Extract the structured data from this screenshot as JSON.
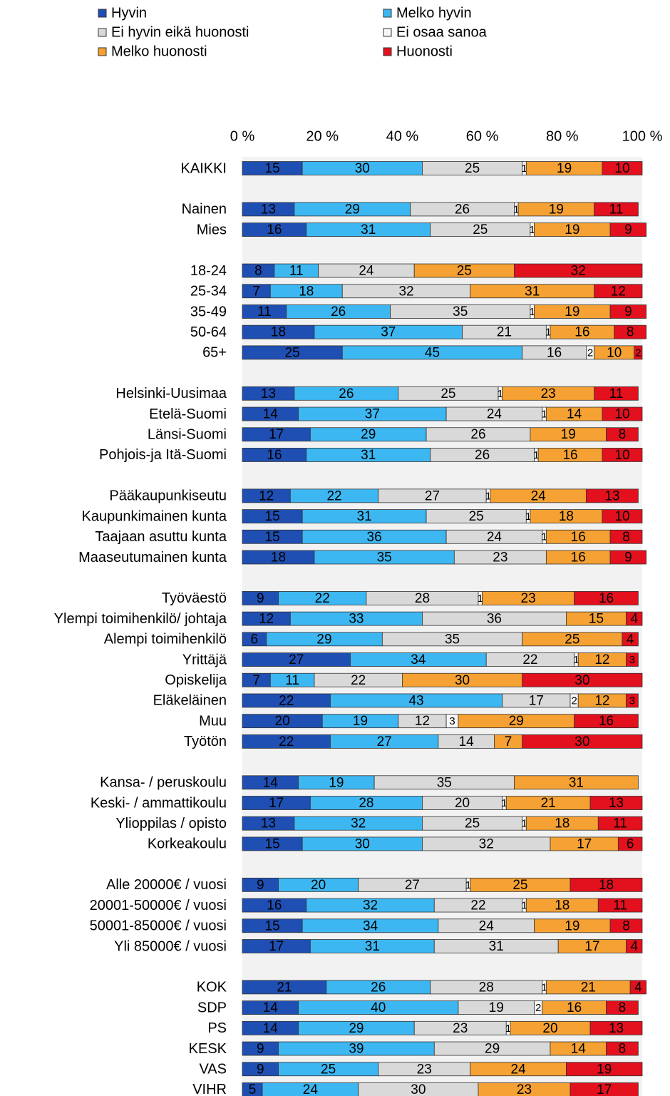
{
  "chart_data": {
    "type": "stacked_bar_horizontal",
    "categories": [
      "KAIKKI",
      null,
      "Nainen",
      "Mies",
      null,
      "18-24",
      "25-34",
      "35-49",
      "50-64",
      "65+",
      null,
      "Helsinki-Uusimaa",
      "Etelä-Suomi",
      "Länsi-Suomi",
      "Pohjois-ja Itä-Suomi",
      null,
      "Pääkaupunkiseutu",
      "Kaupunkimainen kunta",
      "Taajaan asuttu kunta",
      "Maaseutumainen kunta",
      null,
      "Työväestö",
      "Ylempi toimihenkilö/ johtaja",
      "Alempi toimihenkilö",
      "Yrittäjä",
      "Opiskelija",
      "Eläkeläinen",
      "Muu",
      "Työtön",
      null,
      "Kansa- / peruskoulu",
      "Keski- / ammattikoulu",
      "Ylioppilas / opisto",
      "Korkeakoulu",
      null,
      "Alle 20000€ / vuosi",
      "20001-50000€ / vuosi",
      "50001-85000€ / vuosi",
      "Yli 85000€ / vuosi",
      null,
      "KOK",
      "SDP",
      "PS",
      "KESK",
      "VAS",
      "VIHR"
    ],
    "series": [
      {
        "name": "Hyvin",
        "color": "#1f4fb3",
        "values": [
          15,
          null,
          13,
          16,
          null,
          8,
          7,
          11,
          18,
          25,
          null,
          13,
          14,
          17,
          16,
          null,
          12,
          15,
          15,
          18,
          null,
          9,
          12,
          6,
          27,
          7,
          22,
          20,
          22,
          null,
          14,
          17,
          13,
          15,
          null,
          9,
          16,
          15,
          17,
          null,
          21,
          14,
          14,
          9,
          9,
          5
        ]
      },
      {
        "name": "Melko hyvin",
        "color": "#3db7f2",
        "values": [
          30,
          null,
          29,
          31,
          null,
          11,
          18,
          26,
          37,
          45,
          null,
          26,
          37,
          29,
          31,
          null,
          22,
          31,
          36,
          35,
          null,
          22,
          33,
          29,
          34,
          11,
          43,
          19,
          27,
          null,
          19,
          28,
          32,
          30,
          null,
          20,
          32,
          34,
          31,
          null,
          26,
          40,
          29,
          39,
          25,
          24
        ]
      },
      {
        "name": "Ei hyvin eikä huonosti",
        "color": "#d9d9d9",
        "values": [
          25,
          null,
          26,
          25,
          null,
          24,
          32,
          35,
          21,
          16,
          null,
          25,
          24,
          26,
          26,
          null,
          27,
          25,
          24,
          23,
          null,
          28,
          36,
          35,
          22,
          22,
          17,
          12,
          14,
          null,
          35,
          20,
          25,
          32,
          null,
          27,
          22,
          24,
          31,
          null,
          28,
          19,
          23,
          29,
          23,
          30
        ]
      },
      {
        "name": "Ei osaa sanoa",
        "color": "#f7f7f7",
        "values": [
          1,
          null,
          1,
          1,
          null,
          0,
          0,
          1,
          1,
          2,
          null,
          1,
          1,
          0,
          1,
          null,
          1,
          1,
          1,
          0,
          null,
          1,
          0,
          0,
          1,
          0,
          2,
          3,
          0,
          null,
          0,
          1,
          1,
          0,
          null,
          1,
          1,
          0,
          0,
          null,
          1,
          2,
          1,
          0,
          0,
          0
        ]
      },
      {
        "name": "Melko huonosti",
        "color": "#f5a133",
        "values": [
          19,
          null,
          19,
          19,
          null,
          25,
          31,
          19,
          16,
          10,
          null,
          23,
          14,
          19,
          16,
          null,
          24,
          18,
          16,
          16,
          null,
          23,
          15,
          25,
          12,
          30,
          12,
          29,
          7,
          null,
          31,
          21,
          18,
          17,
          null,
          25,
          18,
          19,
          17,
          null,
          21,
          16,
          20,
          14,
          24,
          23
        ]
      },
      {
        "name": "Huonosti",
        "color": "#e3101d",
        "values": [
          10,
          null,
          11,
          9,
          null,
          32,
          12,
          9,
          8,
          2,
          null,
          11,
          10,
          8,
          10,
          null,
          13,
          10,
          8,
          9,
          null,
          16,
          4,
          4,
          3,
          30,
          3,
          16,
          30,
          null,
          0,
          13,
          11,
          6,
          null,
          18,
          11,
          8,
          4,
          null,
          4,
          8,
          13,
          8,
          19,
          17
        ]
      }
    ],
    "xlim": [
      0,
      100
    ],
    "xticks": [
      {
        "value": 0,
        "label": "0 %"
      },
      {
        "value": 20,
        "label": "20 %"
      },
      {
        "value": 40,
        "label": "40 %"
      },
      {
        "value": 60,
        "label": "60 %"
      },
      {
        "value": 80,
        "label": "80 %"
      },
      {
        "value": 100,
        "label": "100 %"
      }
    ]
  }
}
